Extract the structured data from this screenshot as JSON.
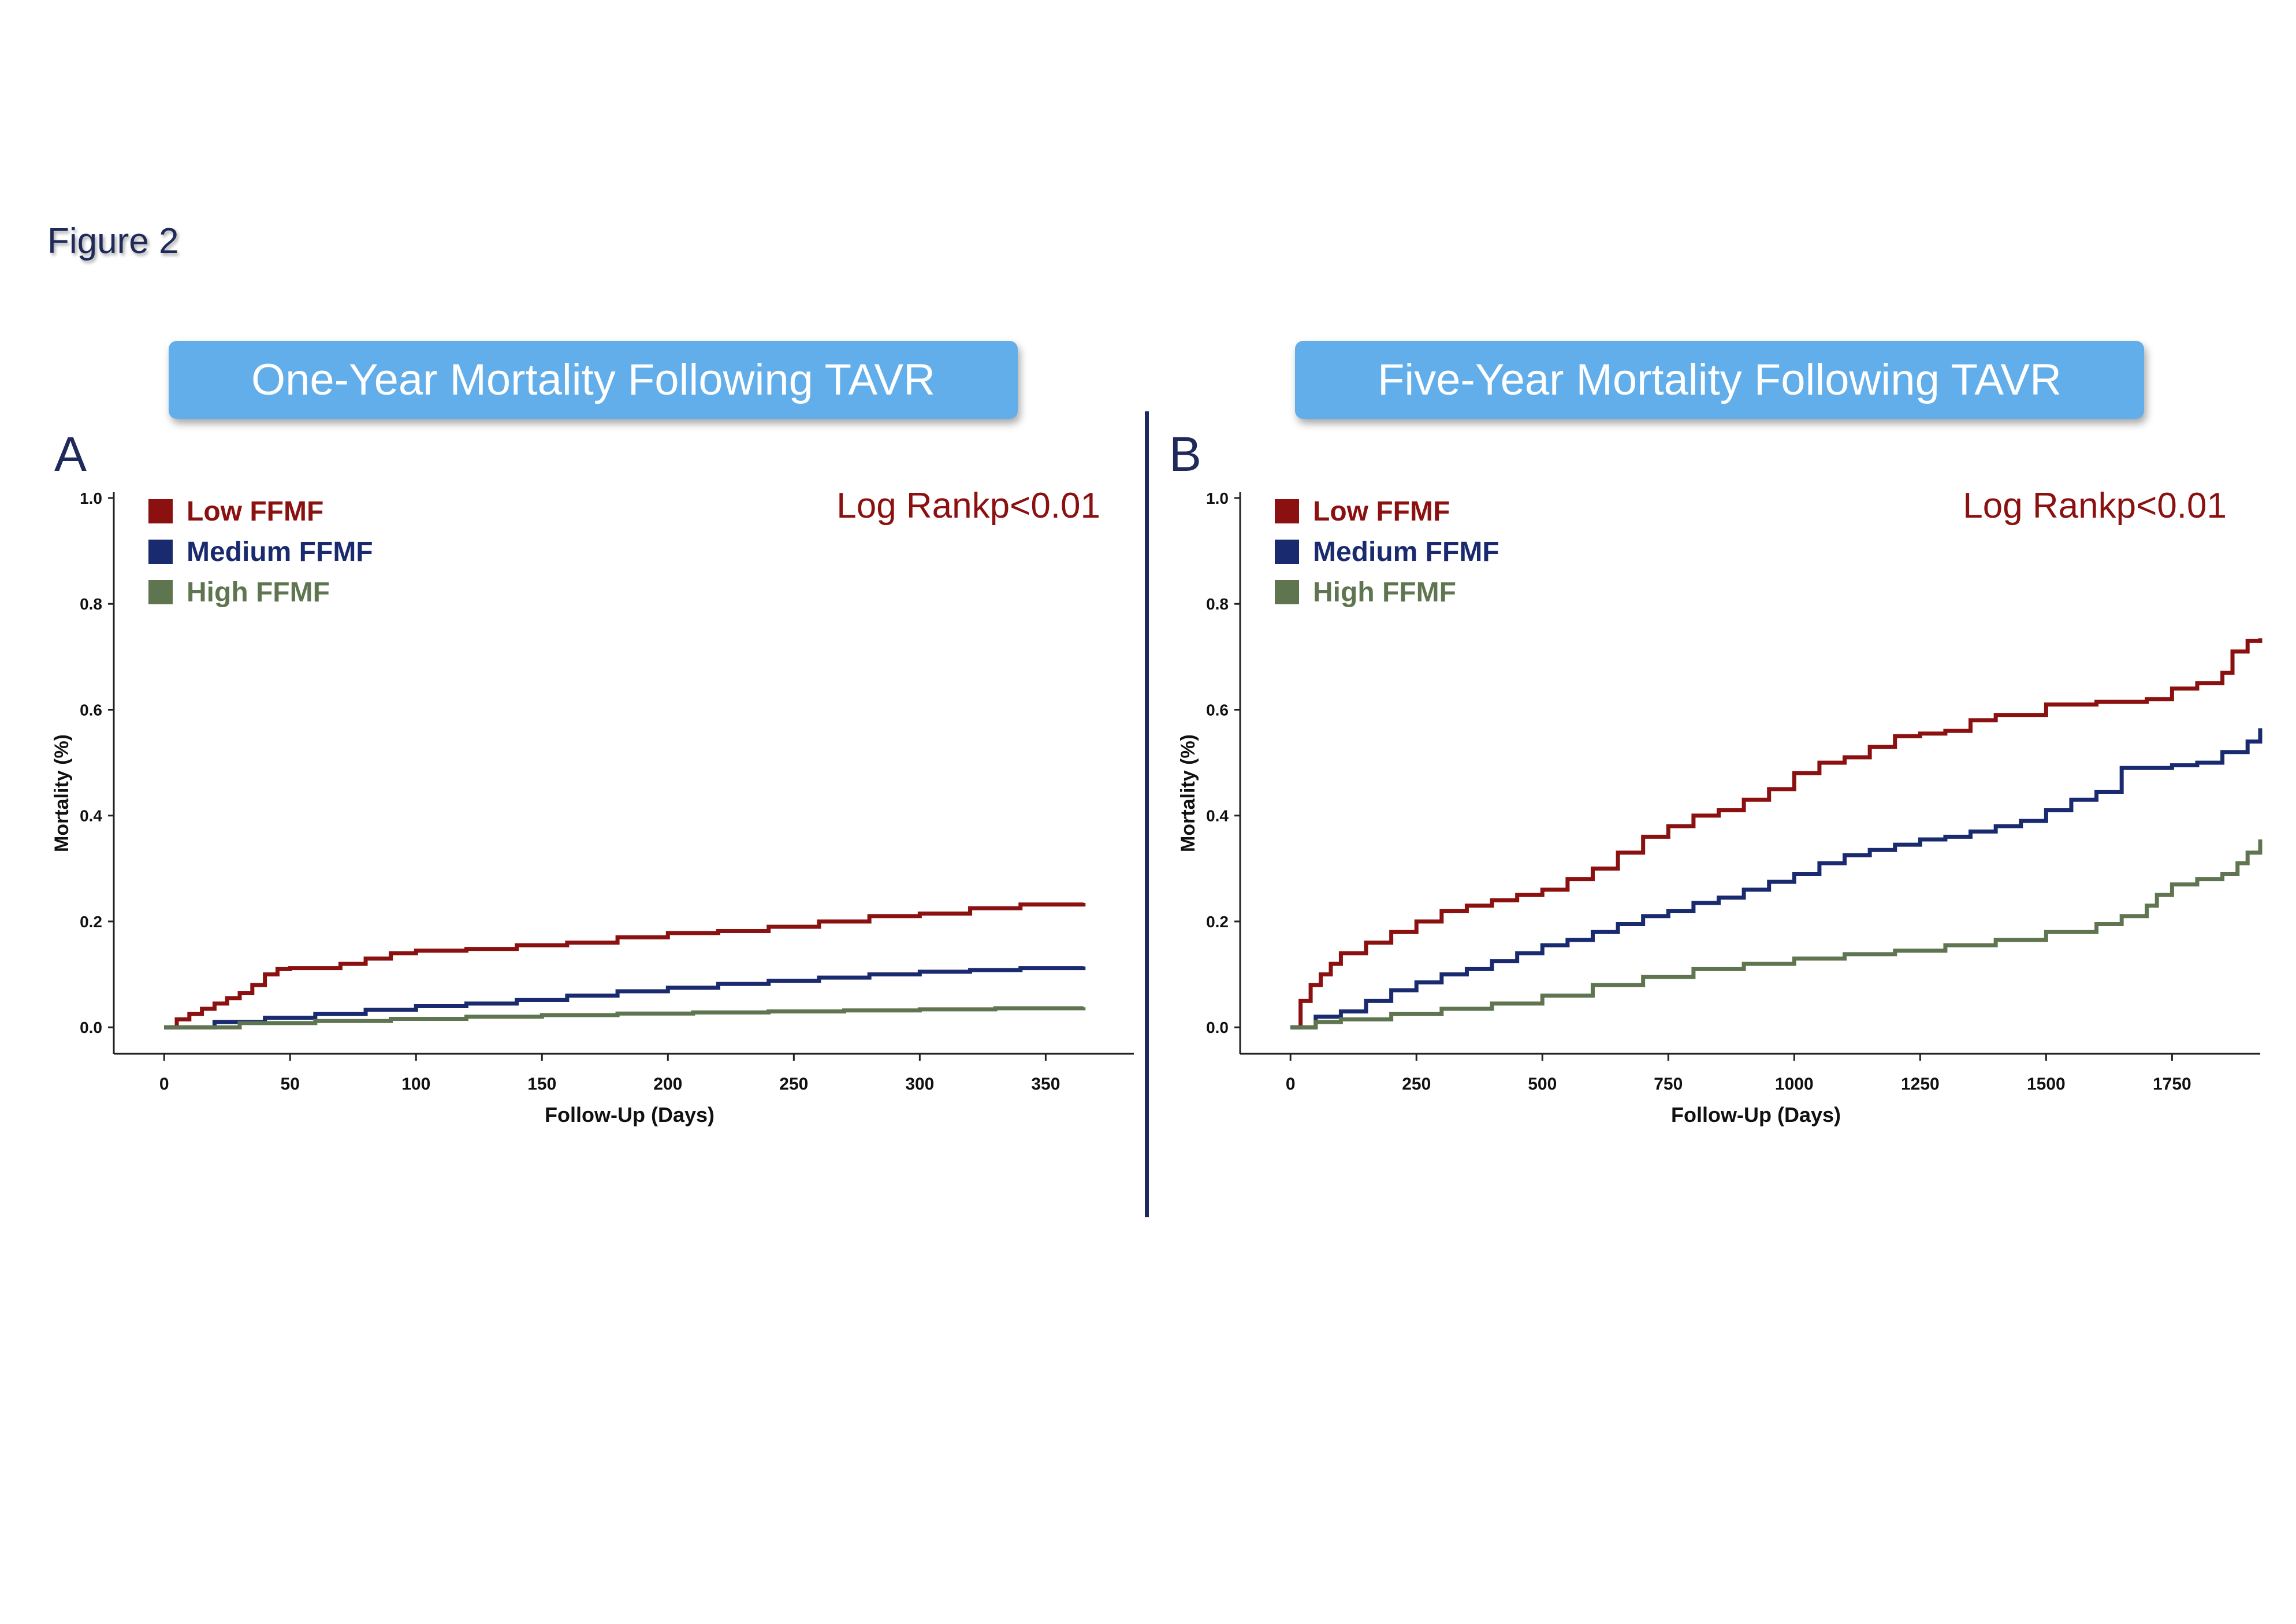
{
  "figure_label": "Figure 2",
  "colors": {
    "low": "#8b1010",
    "medium": "#1a2a6e",
    "high": "#5f7550",
    "banner": "#62aeea",
    "text_dark": "#1f2a5a"
  },
  "panels": [
    {
      "letter": "A",
      "banner": "One-Year Mortality Following TAVR",
      "logrank": "Log Rankp<0.01",
      "legend": [
        {
          "label": "Low FFMF",
          "color": "#8b1010"
        },
        {
          "label": "Medium FFMF",
          "color": "#1a2a6e"
        },
        {
          "label": "High FFMF",
          "color": "#5f7550"
        }
      ]
    },
    {
      "letter": "B",
      "banner": "Five-Year Mortality Following TAVR",
      "logrank": "Log Rankp<0.01",
      "legend": [
        {
          "label": "Low FFMF",
          "color": "#8b1010"
        },
        {
          "label": "Medium FFMF",
          "color": "#1a2a6e"
        },
        {
          "label": "High FFMF",
          "color": "#5f7550"
        }
      ]
    }
  ],
  "chart_data": [
    {
      "type": "line",
      "step": true,
      "xlabel": "Follow-Up (Days)",
      "ylabel": "Mortality (%)",
      "xlim": [
        -20,
        385
      ],
      "ylim": [
        -0.05,
        1.0
      ],
      "xticks": [
        0,
        50,
        100,
        150,
        200,
        250,
        300,
        350
      ],
      "yticks": [
        "0.0",
        "0.2",
        "0.4",
        "0.6",
        "0.8",
        "1.0"
      ],
      "series": [
        {
          "name": "Low FFMF",
          "color": "#8b1010",
          "x": [
            0,
            5,
            10,
            15,
            20,
            25,
            30,
            35,
            40,
            45,
            50,
            70,
            80,
            90,
            100,
            120,
            140,
            160,
            180,
            200,
            220,
            240,
            260,
            280,
            300,
            320,
            340,
            365
          ],
          "y": [
            0,
            0.015,
            0.025,
            0.035,
            0.045,
            0.055,
            0.065,
            0.08,
            0.1,
            0.11,
            0.112,
            0.12,
            0.13,
            0.14,
            0.145,
            0.148,
            0.155,
            0.16,
            0.17,
            0.178,
            0.182,
            0.19,
            0.2,
            0.21,
            0.215,
            0.225,
            0.232,
            0.235
          ]
        },
        {
          "name": "Medium FFMF",
          "color": "#1a2a6e",
          "x": [
            0,
            20,
            40,
            60,
            80,
            100,
            120,
            140,
            160,
            180,
            200,
            220,
            240,
            260,
            280,
            300,
            320,
            340,
            365
          ],
          "y": [
            0,
            0.01,
            0.018,
            0.025,
            0.033,
            0.04,
            0.045,
            0.052,
            0.06,
            0.068,
            0.075,
            0.082,
            0.088,
            0.094,
            0.1,
            0.105,
            0.108,
            0.112,
            0.115
          ]
        },
        {
          "name": "High FFMF",
          "color": "#5f7550",
          "x": [
            0,
            30,
            60,
            90,
            120,
            150,
            180,
            210,
            240,
            270,
            300,
            330,
            365
          ],
          "y": [
            0,
            0.008,
            0.012,
            0.016,
            0.02,
            0.023,
            0.026,
            0.028,
            0.03,
            0.032,
            0.034,
            0.036,
            0.038
          ]
        }
      ]
    },
    {
      "type": "line",
      "step": true,
      "xlabel": "Follow-Up (Days)",
      "ylabel": "Mortality (%)",
      "xlim": [
        -100,
        1925
      ],
      "ylim": [
        -0.05,
        1.0
      ],
      "xticks": [
        0,
        250,
        500,
        750,
        1000,
        1250,
        1500,
        1750
      ],
      "yticks": [
        "0.0",
        "0.2",
        "0.4",
        "0.6",
        "0.8",
        "1.0"
      ],
      "series": [
        {
          "name": "Low FFMF",
          "color": "#8b1010",
          "x": [
            0,
            20,
            40,
            60,
            80,
            100,
            150,
            200,
            250,
            300,
            350,
            400,
            450,
            500,
            550,
            600,
            650,
            700,
            750,
            800,
            850,
            900,
            950,
            1000,
            1050,
            1100,
            1150,
            1200,
            1250,
            1300,
            1350,
            1400,
            1450,
            1500,
            1600,
            1700,
            1750,
            1800,
            1850,
            1870,
            1900,
            1925
          ],
          "y": [
            0,
            0.05,
            0.08,
            0.1,
            0.12,
            0.14,
            0.16,
            0.18,
            0.2,
            0.22,
            0.23,
            0.24,
            0.25,
            0.26,
            0.28,
            0.3,
            0.33,
            0.36,
            0.38,
            0.4,
            0.41,
            0.43,
            0.45,
            0.48,
            0.5,
            0.51,
            0.53,
            0.55,
            0.555,
            0.56,
            0.58,
            0.59,
            0.59,
            0.61,
            0.615,
            0.62,
            0.64,
            0.65,
            0.67,
            0.71,
            0.73,
            0.735
          ]
        },
        {
          "name": "Medium FFMF",
          "color": "#1a2a6e",
          "x": [
            0,
            50,
            100,
            150,
            200,
            250,
            300,
            350,
            400,
            450,
            500,
            550,
            600,
            650,
            700,
            750,
            800,
            850,
            900,
            950,
            1000,
            1050,
            1100,
            1150,
            1200,
            1250,
            1300,
            1350,
            1400,
            1450,
            1500,
            1550,
            1600,
            1650,
            1700,
            1750,
            1800,
            1850,
            1900,
            1925
          ],
          "y": [
            0,
            0.02,
            0.03,
            0.05,
            0.07,
            0.085,
            0.1,
            0.11,
            0.125,
            0.14,
            0.155,
            0.165,
            0.18,
            0.195,
            0.21,
            0.22,
            0.235,
            0.245,
            0.26,
            0.275,
            0.29,
            0.31,
            0.325,
            0.335,
            0.345,
            0.355,
            0.36,
            0.37,
            0.38,
            0.39,
            0.41,
            0.43,
            0.445,
            0.49,
            0.49,
            0.495,
            0.5,
            0.52,
            0.54,
            0.565
          ]
        },
        {
          "name": "High FFMF",
          "color": "#5f7550",
          "x": [
            0,
            50,
            100,
            200,
            300,
            400,
            500,
            600,
            700,
            800,
            900,
            1000,
            1100,
            1200,
            1300,
            1400,
            1500,
            1600,
            1650,
            1700,
            1720,
            1750,
            1800,
            1850,
            1880,
            1900,
            1925
          ],
          "y": [
            0,
            0.01,
            0.015,
            0.025,
            0.035,
            0.045,
            0.06,
            0.08,
            0.095,
            0.11,
            0.12,
            0.13,
            0.138,
            0.145,
            0.155,
            0.165,
            0.18,
            0.195,
            0.21,
            0.23,
            0.25,
            0.27,
            0.28,
            0.29,
            0.31,
            0.33,
            0.355
          ]
        }
      ]
    }
  ]
}
